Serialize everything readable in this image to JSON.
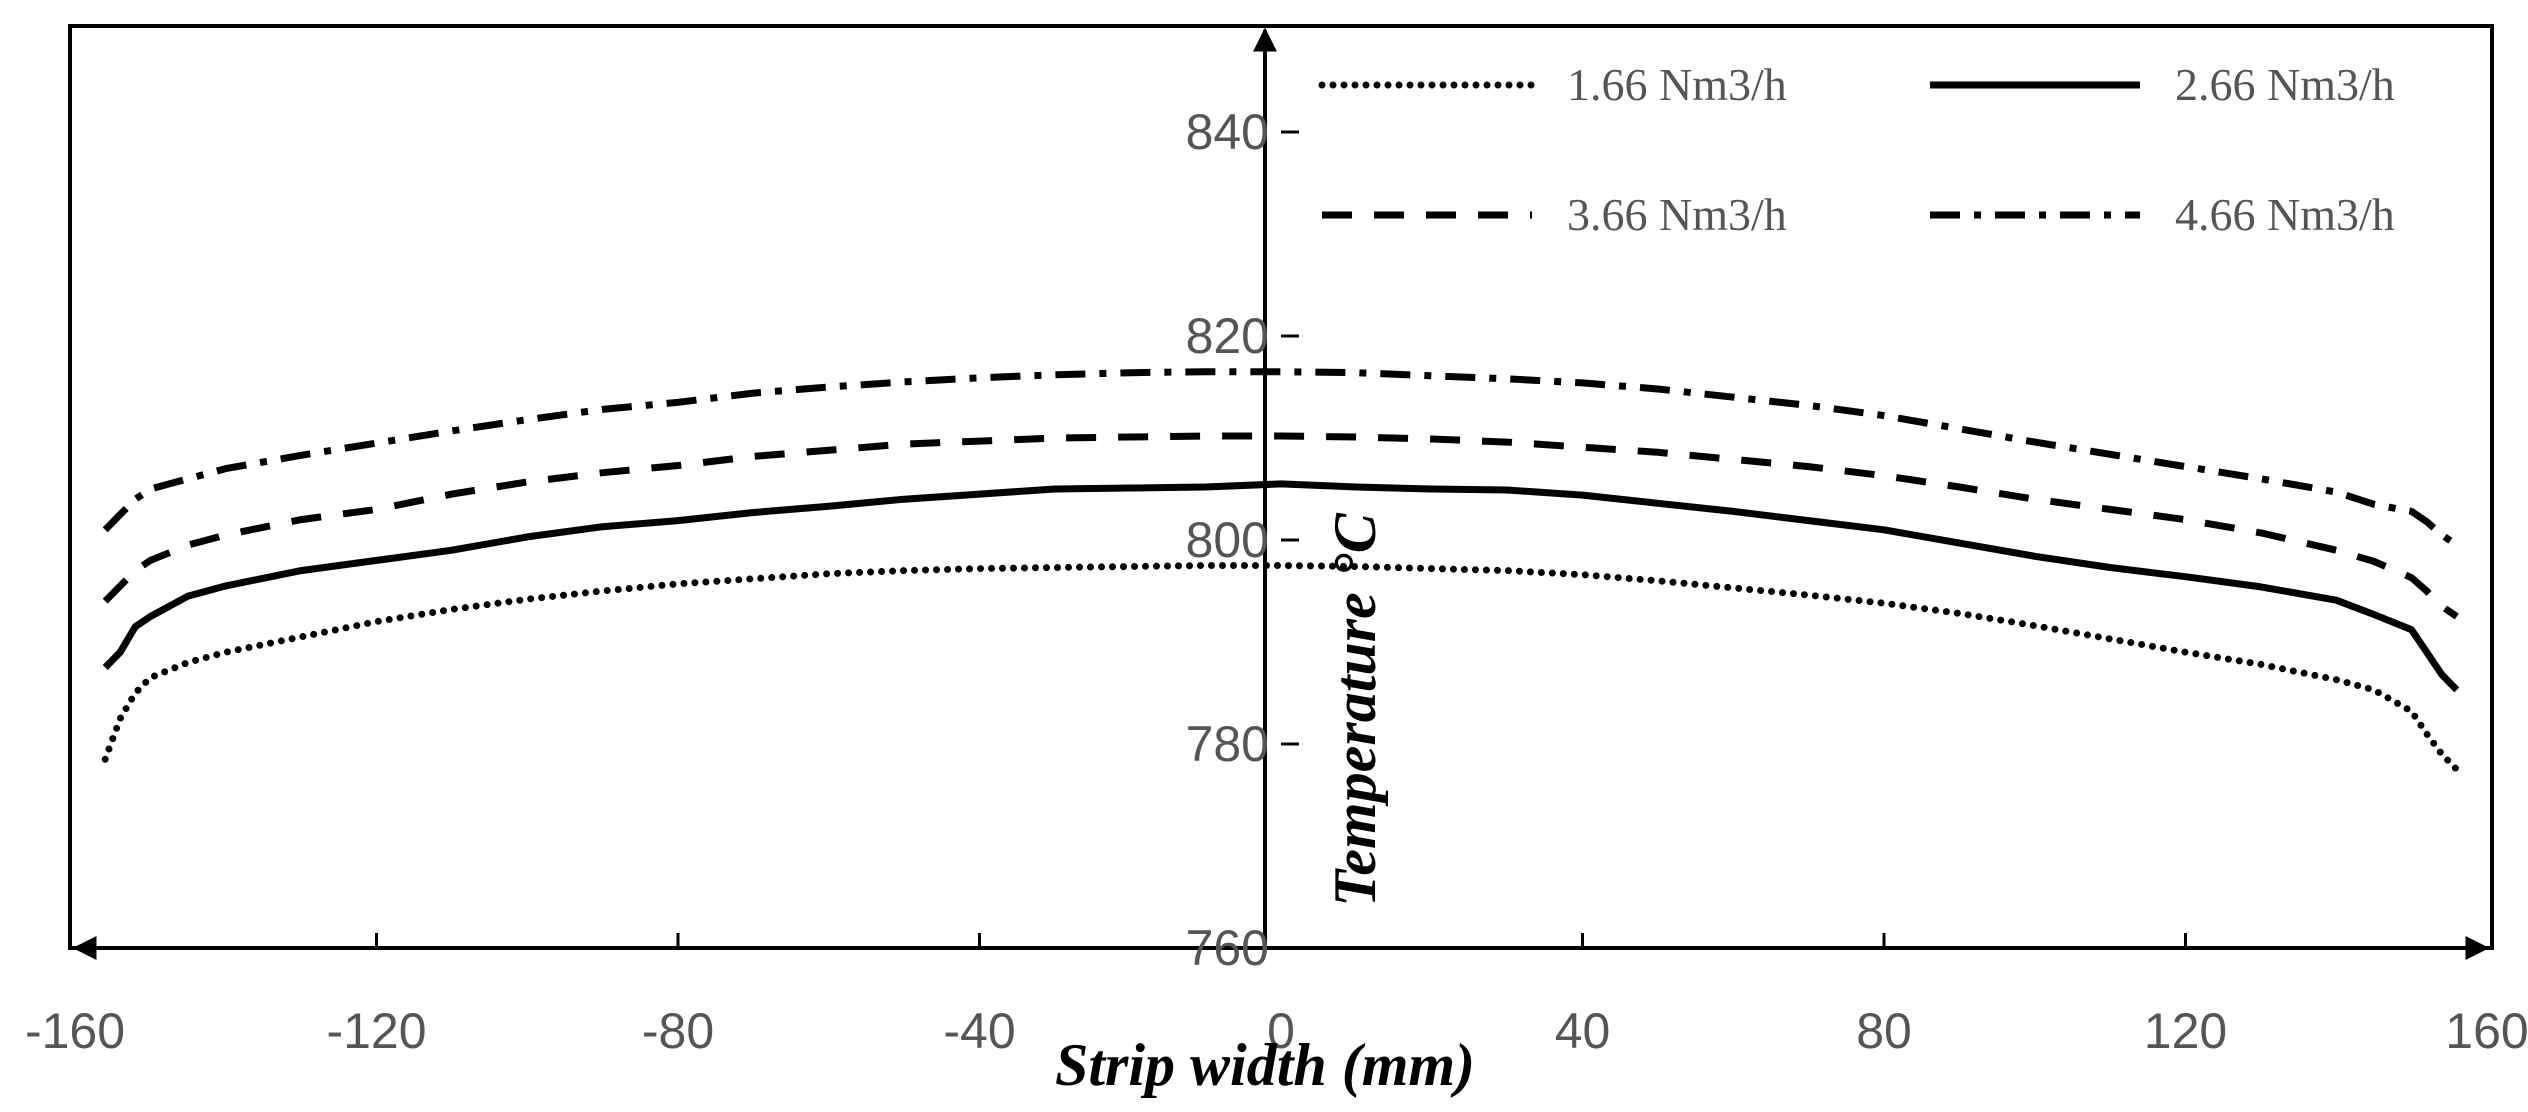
{
  "chart_data": {
    "type": "line",
    "xlabel": "Strip width (mm)",
    "ylabel": "Temperature °C",
    "xlim": [
      -160,
      160
    ],
    "ylim": [
      760,
      850
    ],
    "xticks": [
      -160,
      -120,
      -80,
      -40,
      0,
      40,
      80,
      120,
      160
    ],
    "yticks": [
      760,
      780,
      800,
      820,
      840
    ],
    "grid": false,
    "legend_position": "top-right",
    "x": [
      -156,
      -154,
      -152,
      -150,
      -145,
      -140,
      -130,
      -120,
      -110,
      -100,
      -90,
      -80,
      -70,
      -60,
      -50,
      -40,
      -30,
      -20,
      -10,
      0,
      10,
      20,
      30,
      40,
      50,
      60,
      70,
      80,
      90,
      100,
      110,
      120,
      130,
      140,
      145,
      150,
      152,
      154,
      156
    ],
    "series": [
      {
        "name": "1.66 Nm3/h",
        "style": "dotted",
        "values": [
          778.5,
          782.5,
          785.0,
          786.5,
          788.0,
          789.0,
          790.5,
          792.0,
          793.2,
          794.2,
          795.0,
          795.7,
          796.2,
          796.7,
          797.0,
          797.2,
          797.3,
          797.4,
          797.5,
          797.5,
          797.4,
          797.2,
          797.0,
          796.6,
          796.0,
          795.3,
          794.6,
          793.8,
          792.8,
          791.6,
          790.3,
          789.0,
          787.8,
          786.3,
          785.3,
          783.2,
          781.0,
          779.0,
          777.5
        ]
      },
      {
        "name": "2.66 Nm3/h",
        "style": "solid",
        "values": [
          787.5,
          789.0,
          791.5,
          792.5,
          794.5,
          795.5,
          797.0,
          798.0,
          799.0,
          800.3,
          801.3,
          801.9,
          802.7,
          803.3,
          804.0,
          804.5,
          805.0,
          805.1,
          805.2,
          805.5,
          805.2,
          805.0,
          804.9,
          804.4,
          803.6,
          802.8,
          801.9,
          801.0,
          799.7,
          798.4,
          797.3,
          796.4,
          795.4,
          794.1,
          792.7,
          791.2,
          789.0,
          786.8,
          785.3
        ]
      },
      {
        "name": "3.66 Nm3/h",
        "style": "dashed",
        "values": [
          794.0,
          795.5,
          797.0,
          798.0,
          799.5,
          800.5,
          802.0,
          803.0,
          804.5,
          805.7,
          806.6,
          807.3,
          808.2,
          808.8,
          809.4,
          809.7,
          810.0,
          810.1,
          810.2,
          810.2,
          810.1,
          809.9,
          809.6,
          809.1,
          808.6,
          807.9,
          807.2,
          806.3,
          805.2,
          804.0,
          803.0,
          802.0,
          800.7,
          799.0,
          797.9,
          796.3,
          795.0,
          793.5,
          792.5
        ]
      },
      {
        "name": "4.66 Nm3/h",
        "style": "dashdot",
        "values": [
          801.0,
          802.5,
          804.0,
          805.0,
          806.0,
          807.0,
          808.3,
          809.5,
          810.7,
          811.8,
          812.8,
          813.5,
          814.4,
          815.0,
          815.5,
          815.9,
          816.2,
          816.4,
          816.5,
          816.5,
          816.4,
          816.1,
          815.8,
          815.4,
          814.8,
          814.0,
          813.2,
          812.2,
          810.9,
          809.6,
          808.4,
          807.2,
          806.0,
          804.7,
          803.5,
          802.8,
          801.8,
          800.5,
          799.5
        ]
      }
    ]
  }
}
